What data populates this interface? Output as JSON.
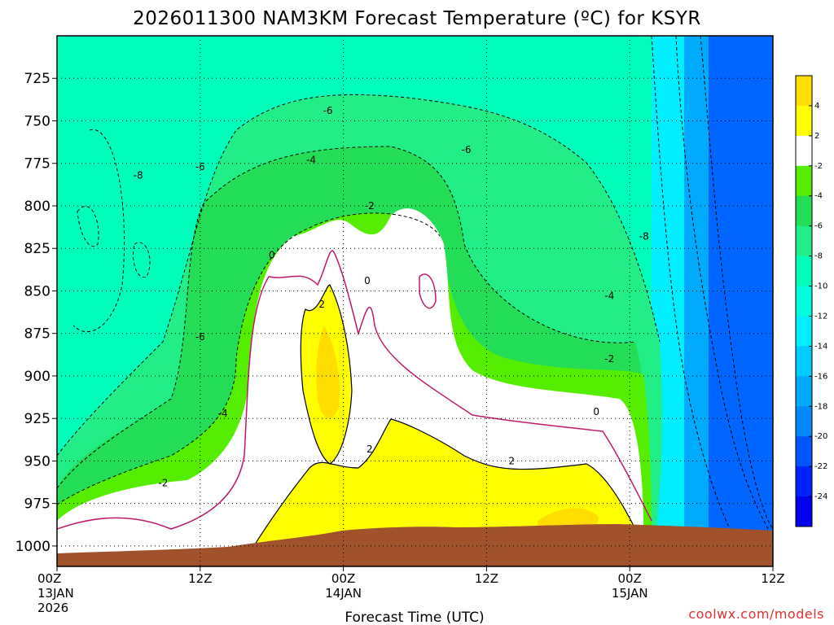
{
  "title": "2026011300 NAM3KM Forecast Temperature (ºC) for KSYR",
  "credit": "coolwx.com/models",
  "chart_data": {
    "type": "heatmap",
    "title": "2026011300 NAM3KM Forecast Temperature (ºC) for KSYR",
    "xlabel": "Forecast Time (UTC)",
    "ylabel": "",
    "x_range_hours": [
      0,
      60
    ],
    "y_range_hpa": [
      1012,
      700
    ],
    "y_ticks": [
      725,
      750,
      775,
      800,
      825,
      850,
      875,
      900,
      925,
      950,
      975,
      1000
    ],
    "x_ticks": [
      {
        "h": 0,
        "l1": "00Z",
        "l2": "13JAN",
        "l3": "2026"
      },
      {
        "h": 12,
        "l1": "12Z",
        "l2": "",
        "l3": ""
      },
      {
        "h": 24,
        "l1": "00Z",
        "l2": "14JAN",
        "l3": ""
      },
      {
        "h": 36,
        "l1": "12Z",
        "l2": "",
        "l3": ""
      },
      {
        "h": 48,
        "l1": "00Z",
        "l2": "15JAN",
        "l3": ""
      },
      {
        "h": 60,
        "l1": "12Z",
        "l2": "",
        "l3": ""
      }
    ],
    "grid": true,
    "colorbar": {
      "placement": "right",
      "labels": [
        "4",
        "2",
        "-2",
        "-4",
        "-6",
        "-8",
        "-10",
        "-12",
        "-14",
        "-16",
        "-18",
        "-20",
        "-22",
        "-24"
      ],
      "colors": [
        "#ffdd00",
        "#ffff00",
        "#ffffff",
        "#55ee00",
        "#22dd55",
        "#22ee88",
        "#00ffbb",
        "#00ffdd",
        "#00eeff",
        "#00ccff",
        "#00aaff",
        "#0088ff",
        "#0055ff",
        "#0022ff",
        "#0000ee"
      ]
    },
    "contour_labels": [
      {
        "t": "-8",
        "h": 6.8,
        "p": 782
      },
      {
        "t": "-6",
        "h": 12.0,
        "p": 777
      },
      {
        "t": "-6",
        "h": 22.7,
        "p": 744
      },
      {
        "t": "-4",
        "h": 21.3,
        "p": 773
      },
      {
        "t": "-6",
        "h": 34.3,
        "p": 767
      },
      {
        "t": "-8",
        "h": 49.2,
        "p": 818
      },
      {
        "t": "-6",
        "h": 12.0,
        "p": 877
      },
      {
        "t": "-4",
        "h": 13.9,
        "p": 922
      },
      {
        "t": "-2",
        "h": 8.9,
        "p": 963
      },
      {
        "t": "-2",
        "h": 26.2,
        "p": 800
      },
      {
        "t": "0",
        "h": 18.0,
        "p": 829
      },
      {
        "t": "0",
        "h": 26.0,
        "p": 844
      },
      {
        "t": "2",
        "h": 22.2,
        "p": 858
      },
      {
        "t": "2",
        "h": 26.2,
        "p": 943
      },
      {
        "t": "2",
        "h": 38.1,
        "p": 950
      },
      {
        "t": "0",
        "h": 45.2,
        "p": 921
      },
      {
        "t": "-4",
        "h": 46.3,
        "p": 853
      },
      {
        "t": "-2",
        "h": 46.3,
        "p": 890
      }
    ],
    "terrain_color": "#a0522d"
  }
}
